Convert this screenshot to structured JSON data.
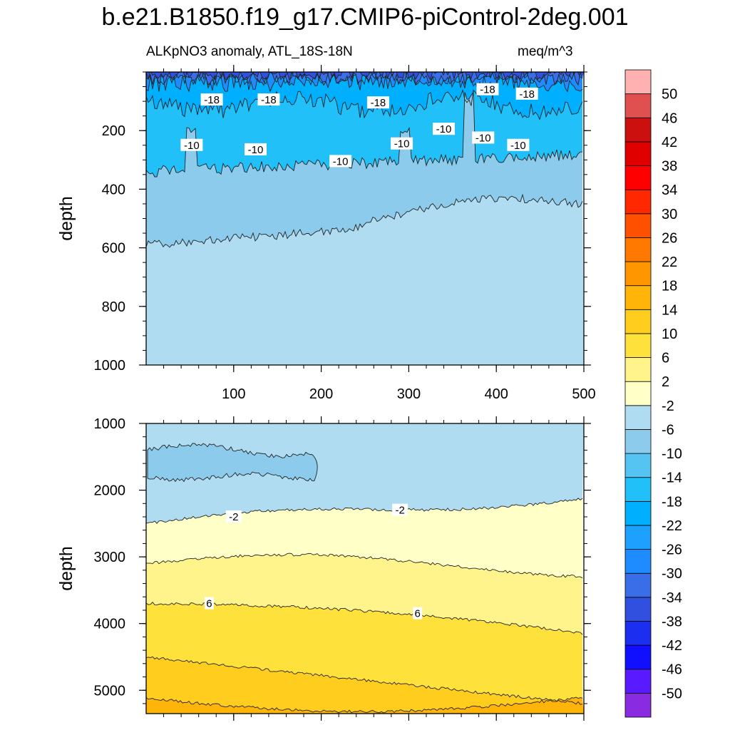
{
  "title": "b.e21.B1850.f19_g17.CMIP6-piControl-2deg.001",
  "subtitle_left": "ALKpNO3 anomaly, ATL_18S-18N",
  "subtitle_right": "meq/m^3",
  "chart_data": {
    "type": "contour",
    "variable": "ALKpNO3 anomaly",
    "region": "ATL_18S-18N",
    "units": "meq/m^3",
    "xlim": [
      0,
      500
    ],
    "x_ticks": [
      100,
      200,
      300,
      400,
      500
    ],
    "colorbar": {
      "levels": [
        -50,
        -46,
        -42,
        -38,
        -34,
        -30,
        -26,
        -22,
        -18,
        -14,
        -10,
        -6,
        -2,
        2,
        6,
        10,
        14,
        18,
        22,
        26,
        30,
        34,
        38,
        42,
        46,
        50
      ],
      "colors": [
        "#8a2be2",
        "#5a1aff",
        "#1010ff",
        "#1c2ef0",
        "#3250e0",
        "#3a6ee8",
        "#1e8cff",
        "#1ea0ff",
        "#00b0ff",
        "#22c0f8",
        "#55c4f2",
        "#8ccbec",
        "#b0dcf2",
        "#ffffc8",
        "#fff48c",
        "#ffe13c",
        "#ffcd1e",
        "#ffb40a",
        "#ff9600",
        "#ff7800",
        "#ff5000",
        "#ff2800",
        "#ff0000",
        "#e00000",
        "#cc1010",
        "#e05050",
        "#ffb0b0"
      ]
    },
    "panels": [
      {
        "name": "upper",
        "ylabel": "depth",
        "ylim": [
          0,
          1000
        ],
        "y_ticks": [
          200,
          400,
          600,
          800,
          1000
        ],
        "contour_labels": [
          {
            "text": "-18",
            "x": 75,
            "y": 95
          },
          {
            "text": "-18",
            "x": 140,
            "y": 95
          },
          {
            "text": "-18",
            "x": 265,
            "y": 105
          },
          {
            "text": "-18",
            "x": 390,
            "y": 60
          },
          {
            "text": "-18",
            "x": 435,
            "y": 75
          },
          {
            "text": "-10",
            "x": 52,
            "y": 250
          },
          {
            "text": "-10",
            "x": 125,
            "y": 265
          },
          {
            "text": "-10",
            "x": 222,
            "y": 305
          },
          {
            "text": "-10",
            "x": 292,
            "y": 245
          },
          {
            "text": "-10",
            "x": 340,
            "y": 195
          },
          {
            "text": "-10",
            "x": 385,
            "y": 225
          },
          {
            "text": "-10",
            "x": 425,
            "y": 250
          }
        ]
      },
      {
        "name": "lower",
        "ylabel": "depth",
        "ylim": [
          1000,
          5350
        ],
        "y_ticks": [
          1000,
          2000,
          3000,
          4000,
          5000
        ],
        "contour_labels": [
          {
            "text": "-2",
            "x": 100,
            "y": 2400
          },
          {
            "text": "-2",
            "x": 290,
            "y": 2300
          },
          {
            "text": "6",
            "x": 72,
            "y": 3700
          },
          {
            "text": "6",
            "x": 310,
            "y": 3850
          }
        ]
      }
    ]
  }
}
